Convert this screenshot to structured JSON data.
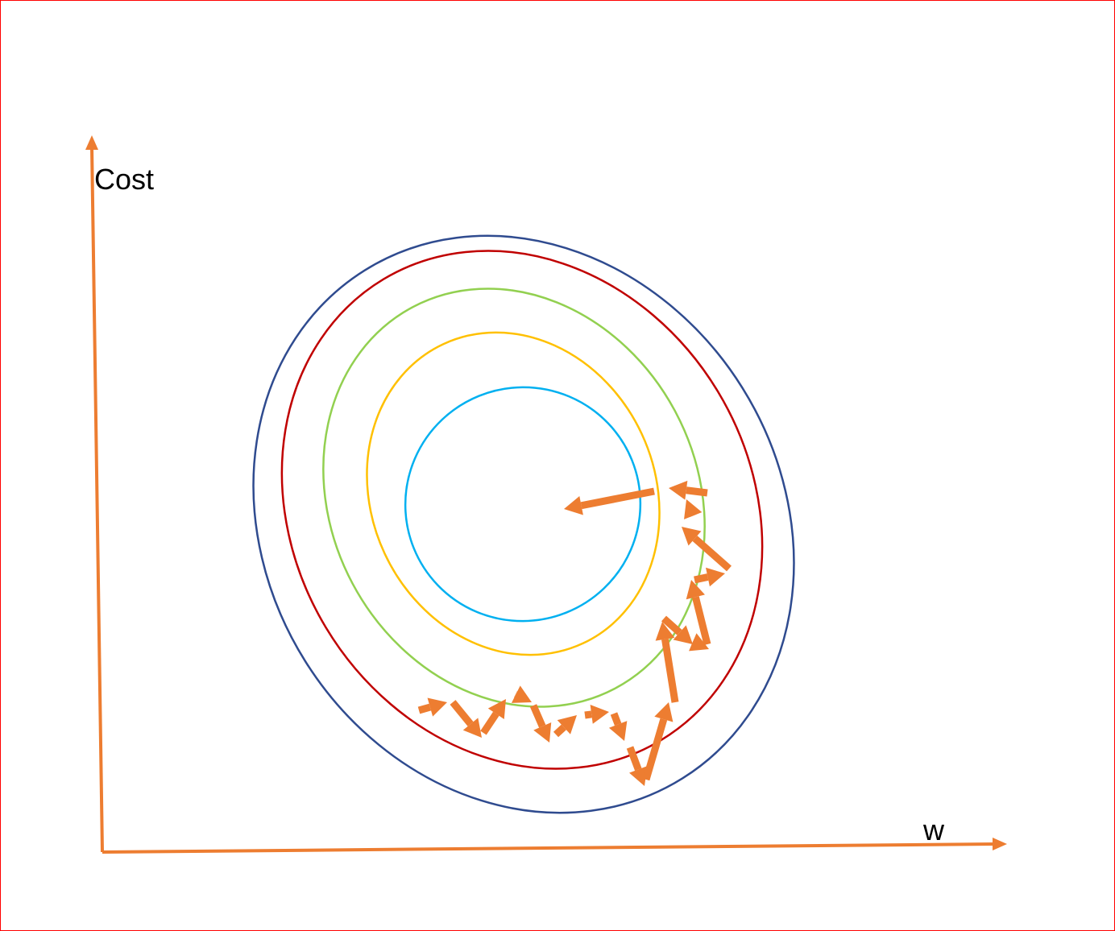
{
  "labels": {
    "y_axis": "Cost",
    "x_axis": "w"
  },
  "colors": {
    "frame": "#ff0000",
    "axis": "#ed7d31",
    "arrow": "#ed7d31",
    "contour_outer": "#2f4b8f",
    "contour_2": "#c00000",
    "contour_3": "#92d050",
    "contour_4": "#ffc000",
    "contour_inner": "#00b0f0"
  },
  "contours": [
    {
      "name": "contour-outer",
      "color_key": "contour_outer"
    },
    {
      "name": "contour-2",
      "color_key": "contour_2"
    },
    {
      "name": "contour-3",
      "color_key": "contour_3"
    },
    {
      "name": "contour-4",
      "color_key": "contour_4"
    },
    {
      "name": "contour-inner",
      "color_key": "contour_inner"
    }
  ]
}
